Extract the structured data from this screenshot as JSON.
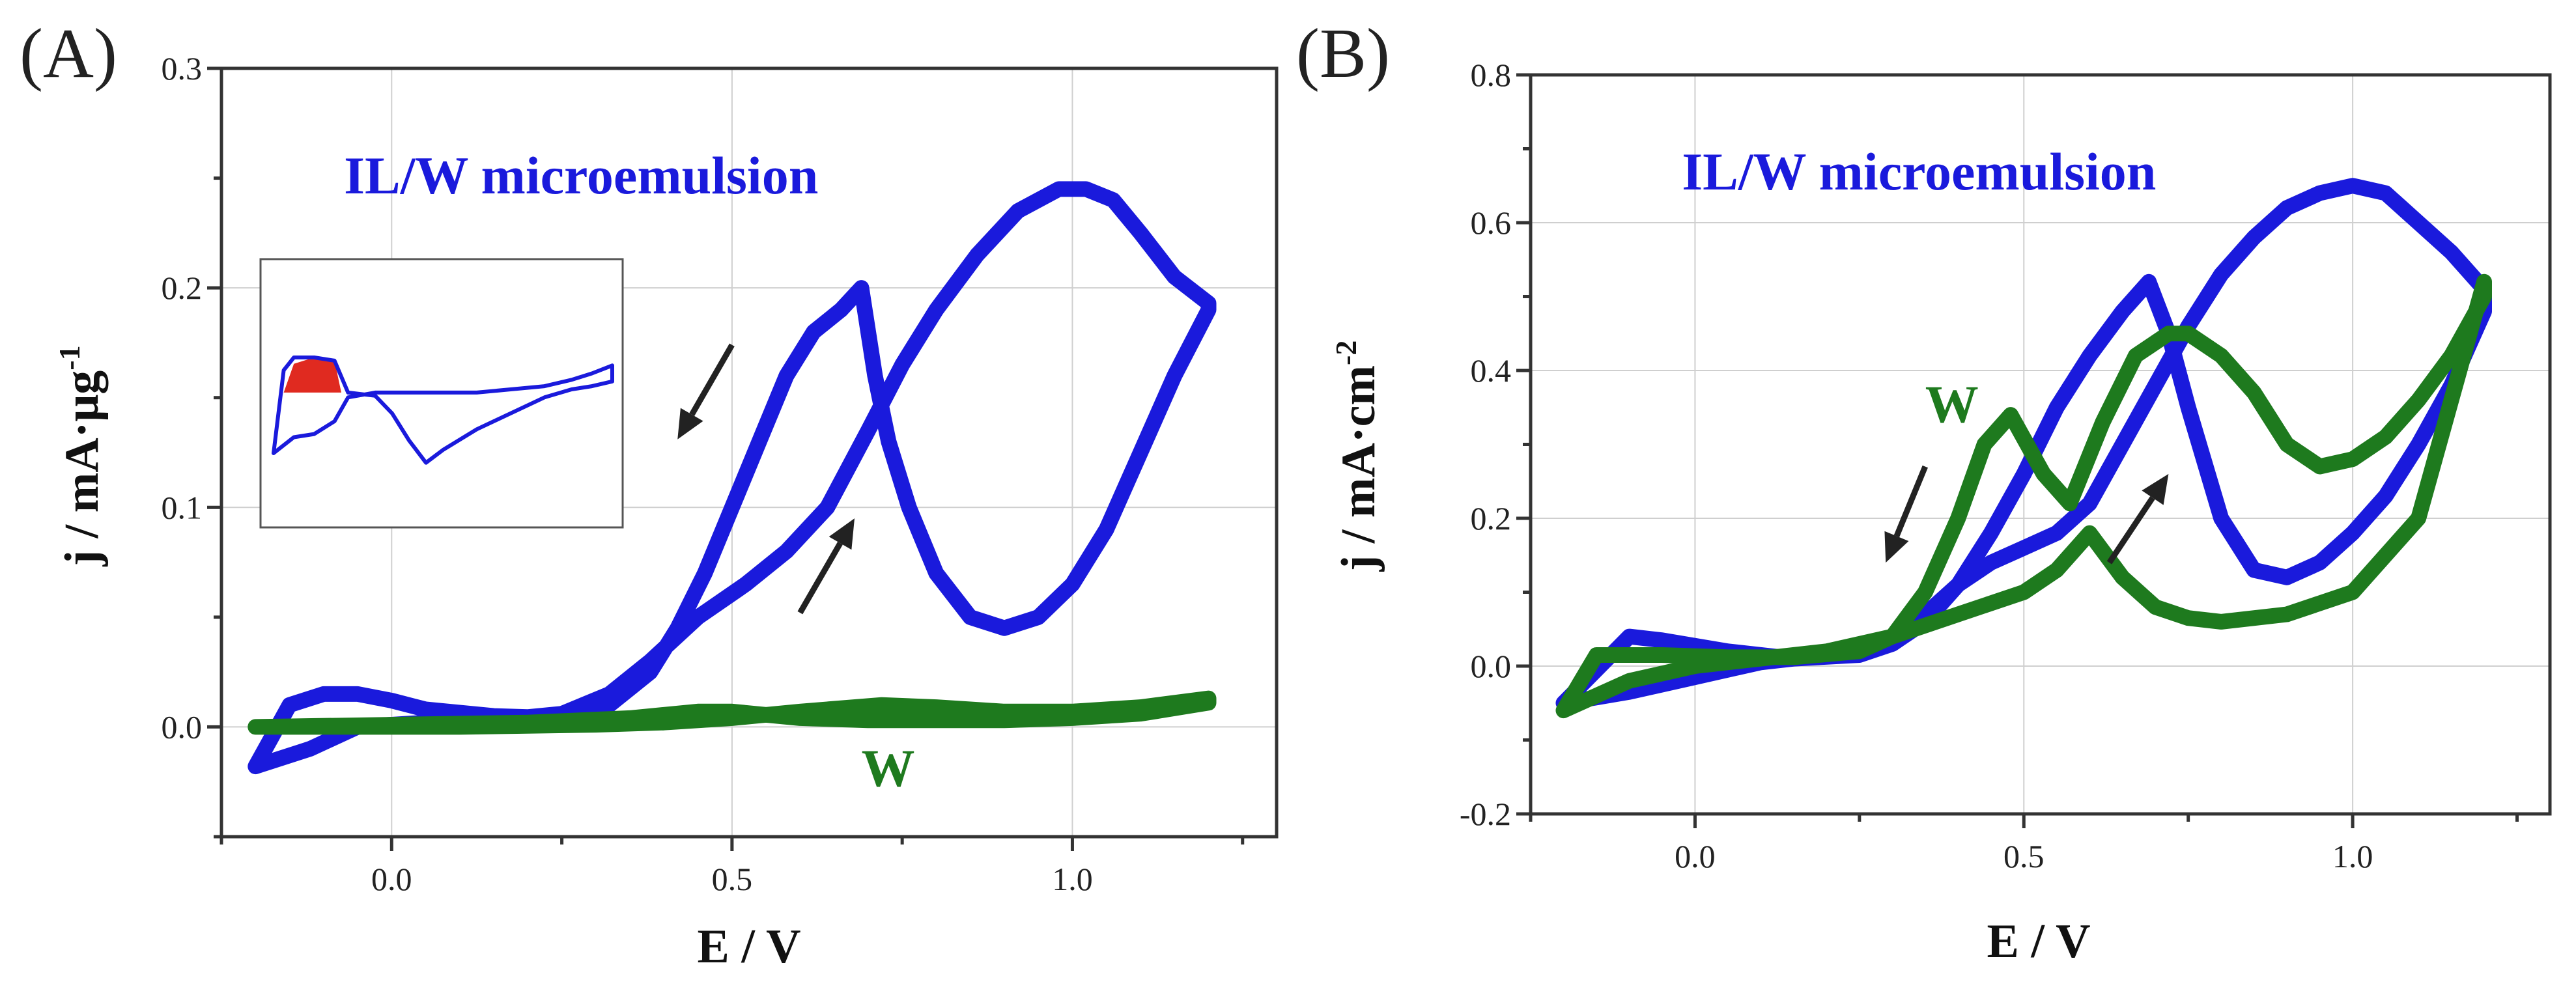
{
  "colors": {
    "ilw": "#1a1adc",
    "water": "#1e7a1e",
    "arrow": "#222222",
    "inset_fill": "#e02a20"
  },
  "chart_data": [
    {
      "panel": "(A)",
      "type": "line",
      "xlabel": "E / V",
      "ylabel_text": "j / mA·μg",
      "ylabel_sup": "-1",
      "xlim": [
        -0.25,
        1.3
      ],
      "ylim": [
        -0.05,
        0.3
      ],
      "xticks": [
        0.0,
        0.5,
        1.0
      ],
      "yticks": [
        0.0,
        0.1,
        0.2,
        0.3
      ],
      "xtick_labels": [
        "0.0",
        "0.5",
        "1.0"
      ],
      "ytick_labels": [
        "0.0",
        "0.1",
        "0.2",
        "0.3"
      ],
      "grid": true,
      "annotations": [
        {
          "text": "IL/W microemulsion",
          "series": "ilw",
          "x": -0.07,
          "y": 0.243
        },
        {
          "text": "W",
          "series": "water",
          "x": 0.69,
          "y": -0.027
        }
      ],
      "arrows": [
        {
          "from": [
            0.5,
            0.174
          ],
          "to": [
            0.42,
            0.131
          ]
        },
        {
          "from": [
            0.6,
            0.052
          ],
          "to": [
            0.68,
            0.095
          ]
        }
      ],
      "series": [
        {
          "name": "IL/W microemulsion",
          "color_key": "ilw",
          "x": [
            -0.2,
            -0.12,
            -0.05,
            0.05,
            0.15,
            0.25,
            0.32,
            0.38,
            0.45,
            0.52,
            0.58,
            0.64,
            0.7,
            0.75,
            0.8,
            0.86,
            0.92,
            0.98,
            1.02,
            1.06,
            1.1,
            1.15,
            1.2,
            1.2,
            1.15,
            1.1,
            1.05,
            1.0,
            0.95,
            0.9,
            0.85,
            0.8,
            0.76,
            0.73,
            0.71,
            0.69,
            0.66,
            0.62,
            0.58,
            0.54,
            0.5,
            0.46,
            0.42,
            0.38,
            0.32,
            0.25,
            0.15,
            0.05,
            0.0,
            -0.05,
            -0.1,
            -0.15,
            -0.2
          ],
          "y": [
            -0.018,
            -0.01,
            0.0,
            0.002,
            0.003,
            0.006,
            0.015,
            0.03,
            0.05,
            0.065,
            0.08,
            0.1,
            0.135,
            0.165,
            0.19,
            0.215,
            0.235,
            0.245,
            0.245,
            0.24,
            0.225,
            0.205,
            0.193,
            0.19,
            0.16,
            0.125,
            0.09,
            0.065,
            0.05,
            0.045,
            0.05,
            0.07,
            0.1,
            0.13,
            0.16,
            0.2,
            0.19,
            0.18,
            0.16,
            0.13,
            0.1,
            0.07,
            0.045,
            0.025,
            0.01,
            0.004,
            0.005,
            0.008,
            0.012,
            0.015,
            0.015,
            0.01,
            -0.018
          ]
        },
        {
          "name": "W",
          "color_key": "water",
          "x": [
            -0.2,
            0.0,
            0.2,
            0.35,
            0.45,
            0.5,
            0.6,
            0.7,
            0.8,
            0.9,
            1.0,
            1.1,
            1.2,
            1.2,
            1.1,
            1.0,
            0.9,
            0.8,
            0.72,
            0.6,
            0.5,
            0.4,
            0.3,
            0.1,
            -0.1,
            -0.2
          ],
          "y": [
            0.0,
            0.001,
            0.002,
            0.004,
            0.007,
            0.007,
            0.004,
            0.003,
            0.003,
            0.003,
            0.004,
            0.006,
            0.011,
            0.013,
            0.009,
            0.007,
            0.007,
            0.009,
            0.01,
            0.007,
            0.004,
            0.002,
            0.001,
            0.0,
            0.0,
            0.0
          ]
        }
      ],
      "inset": {
        "type": "line",
        "description_series": "IL/W microemulsion",
        "x": [
          0,
          0.06,
          0.12,
          0.18,
          0.22,
          0.3,
          0.4,
          0.5,
          0.6,
          0.7,
          0.8,
          0.88,
          0.94,
          1.0,
          1.0,
          0.94,
          0.88,
          0.8,
          0.7,
          0.6,
          0.5,
          0.45,
          0.4,
          0.35,
          0.3,
          0.22,
          0.18,
          0.12,
          0.06,
          0.03,
          0.0
        ],
        "y": [
          0.2,
          0.3,
          0.32,
          0.4,
          0.55,
          0.58,
          0.58,
          0.58,
          0.58,
          0.6,
          0.62,
          0.66,
          0.7,
          0.75,
          0.65,
          0.62,
          0.6,
          0.55,
          0.45,
          0.35,
          0.22,
          0.14,
          0.28,
          0.45,
          0.56,
          0.58,
          0.78,
          0.8,
          0.8,
          0.72,
          0.2
        ],
        "ylim": [
          0,
          1
        ],
        "xlim": [
          0,
          1
        ]
      }
    },
    {
      "panel": "(B)",
      "type": "line",
      "xlabel": "E / V",
      "ylabel_text": "j / mA·cm",
      "ylabel_sup": "-2",
      "xlim": [
        -0.25,
        1.3
      ],
      "ylim": [
        -0.2,
        0.8
      ],
      "xticks": [
        0.0,
        0.5,
        1.0
      ],
      "yticks": [
        -0.2,
        0.0,
        0.2,
        0.4,
        0.6,
        0.8
      ],
      "xtick_labels": [
        "0.0",
        "0.5",
        "1.0"
      ],
      "ytick_labels": [
        "-0.2",
        "0.0",
        "0.2",
        "0.4",
        "0.6",
        "0.8"
      ],
      "grid": true,
      "annotations": [
        {
          "text": "IL/W microemulsion",
          "series": "ilw",
          "x": -0.02,
          "y": 0.645
        },
        {
          "text": "W",
          "series": "water",
          "x": 0.35,
          "y": 0.33
        }
      ],
      "arrows": [
        {
          "from": [
            0.35,
            0.27
          ],
          "to": [
            0.29,
            0.14
          ]
        },
        {
          "from": [
            0.63,
            0.14
          ],
          "to": [
            0.72,
            0.26
          ]
        }
      ],
      "series": [
        {
          "name": "IL/W microemulsion",
          "color_key": "ilw",
          "x": [
            -0.2,
            -0.1,
            0.0,
            0.1,
            0.2,
            0.3,
            0.35,
            0.4,
            0.45,
            0.5,
            0.55,
            0.6,
            0.65,
            0.7,
            0.75,
            0.8,
            0.85,
            0.9,
            0.95,
            1.0,
            1.05,
            1.1,
            1.15,
            1.2,
            1.2,
            1.15,
            1.1,
            1.05,
            1.0,
            0.95,
            0.9,
            0.85,
            0.8,
            0.75,
            0.72,
            0.69,
            0.65,
            0.6,
            0.55,
            0.5,
            0.45,
            0.4,
            0.35,
            0.3,
            0.25,
            0.15,
            0.05,
            -0.05,
            -0.1,
            -0.2
          ],
          "y": [
            -0.05,
            -0.035,
            -0.015,
            0.005,
            0.015,
            0.035,
            0.07,
            0.11,
            0.14,
            0.16,
            0.18,
            0.22,
            0.3,
            0.38,
            0.46,
            0.53,
            0.58,
            0.62,
            0.64,
            0.65,
            0.64,
            0.6,
            0.56,
            0.51,
            0.48,
            0.38,
            0.3,
            0.23,
            0.18,
            0.14,
            0.12,
            0.13,
            0.2,
            0.35,
            0.45,
            0.52,
            0.48,
            0.42,
            0.35,
            0.26,
            0.18,
            0.11,
            0.06,
            0.03,
            0.015,
            0.01,
            0.02,
            0.035,
            0.04,
            -0.05
          ]
        },
        {
          "name": "W",
          "color_key": "water",
          "x": [
            -0.2,
            -0.1,
            0.0,
            0.1,
            0.2,
            0.3,
            0.35,
            0.4,
            0.45,
            0.5,
            0.55,
            0.6,
            0.65,
            0.7,
            0.75,
            0.8,
            0.9,
            1.0,
            1.1,
            1.2,
            1.2,
            1.15,
            1.1,
            1.05,
            1.0,
            0.95,
            0.9,
            0.85,
            0.8,
            0.75,
            0.72,
            0.67,
            0.62,
            0.57,
            0.53,
            0.48,
            0.44,
            0.4,
            0.35,
            0.3,
            0.25,
            0.15,
            0.05,
            -0.05,
            -0.15,
            -0.2
          ],
          "y": [
            -0.06,
            -0.02,
            0.0,
            0.01,
            0.02,
            0.04,
            0.055,
            0.07,
            0.085,
            0.1,
            0.13,
            0.18,
            0.12,
            0.08,
            0.065,
            0.06,
            0.07,
            0.1,
            0.2,
            0.52,
            0.5,
            0.42,
            0.36,
            0.31,
            0.28,
            0.27,
            0.3,
            0.37,
            0.42,
            0.45,
            0.45,
            0.42,
            0.33,
            0.22,
            0.26,
            0.34,
            0.3,
            0.2,
            0.1,
            0.04,
            0.02,
            0.012,
            0.012,
            0.015,
            0.015,
            -0.06
          ]
        }
      ]
    }
  ]
}
